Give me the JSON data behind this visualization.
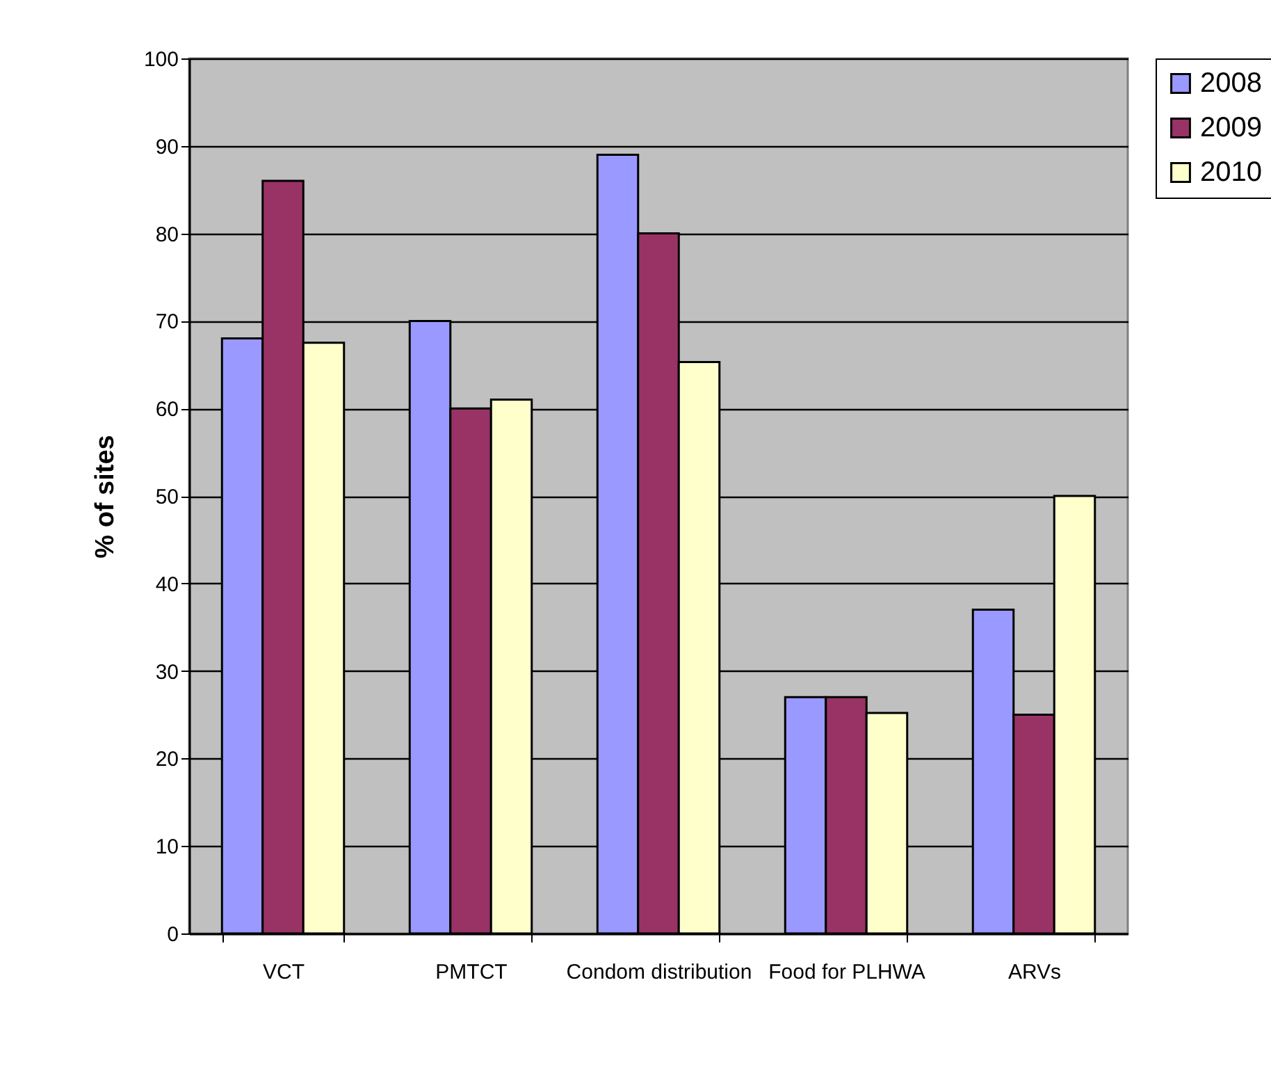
{
  "chart_data": {
    "type": "bar",
    "ylabel": "% of sites",
    "categories": [
      "VCT",
      "PMTCT",
      "Condom distribution",
      "Food for PLHWA",
      "ARVs"
    ],
    "series": [
      {
        "name": "2008",
        "color": "#9999ff",
        "values": [
          68,
          70,
          89,
          27,
          37
        ]
      },
      {
        "name": "2009",
        "color": "#993366",
        "values": [
          86,
          60,
          80,
          27,
          25
        ]
      },
      {
        "name": "2010",
        "color": "#ffffcc",
        "values": [
          67.5,
          61,
          65.3,
          25.2,
          50
        ]
      }
    ],
    "ylim": [
      0,
      100
    ],
    "yticks": [
      0,
      10,
      20,
      30,
      40,
      50,
      60,
      70,
      80,
      90,
      100
    ],
    "grid": true,
    "legend": "right"
  }
}
